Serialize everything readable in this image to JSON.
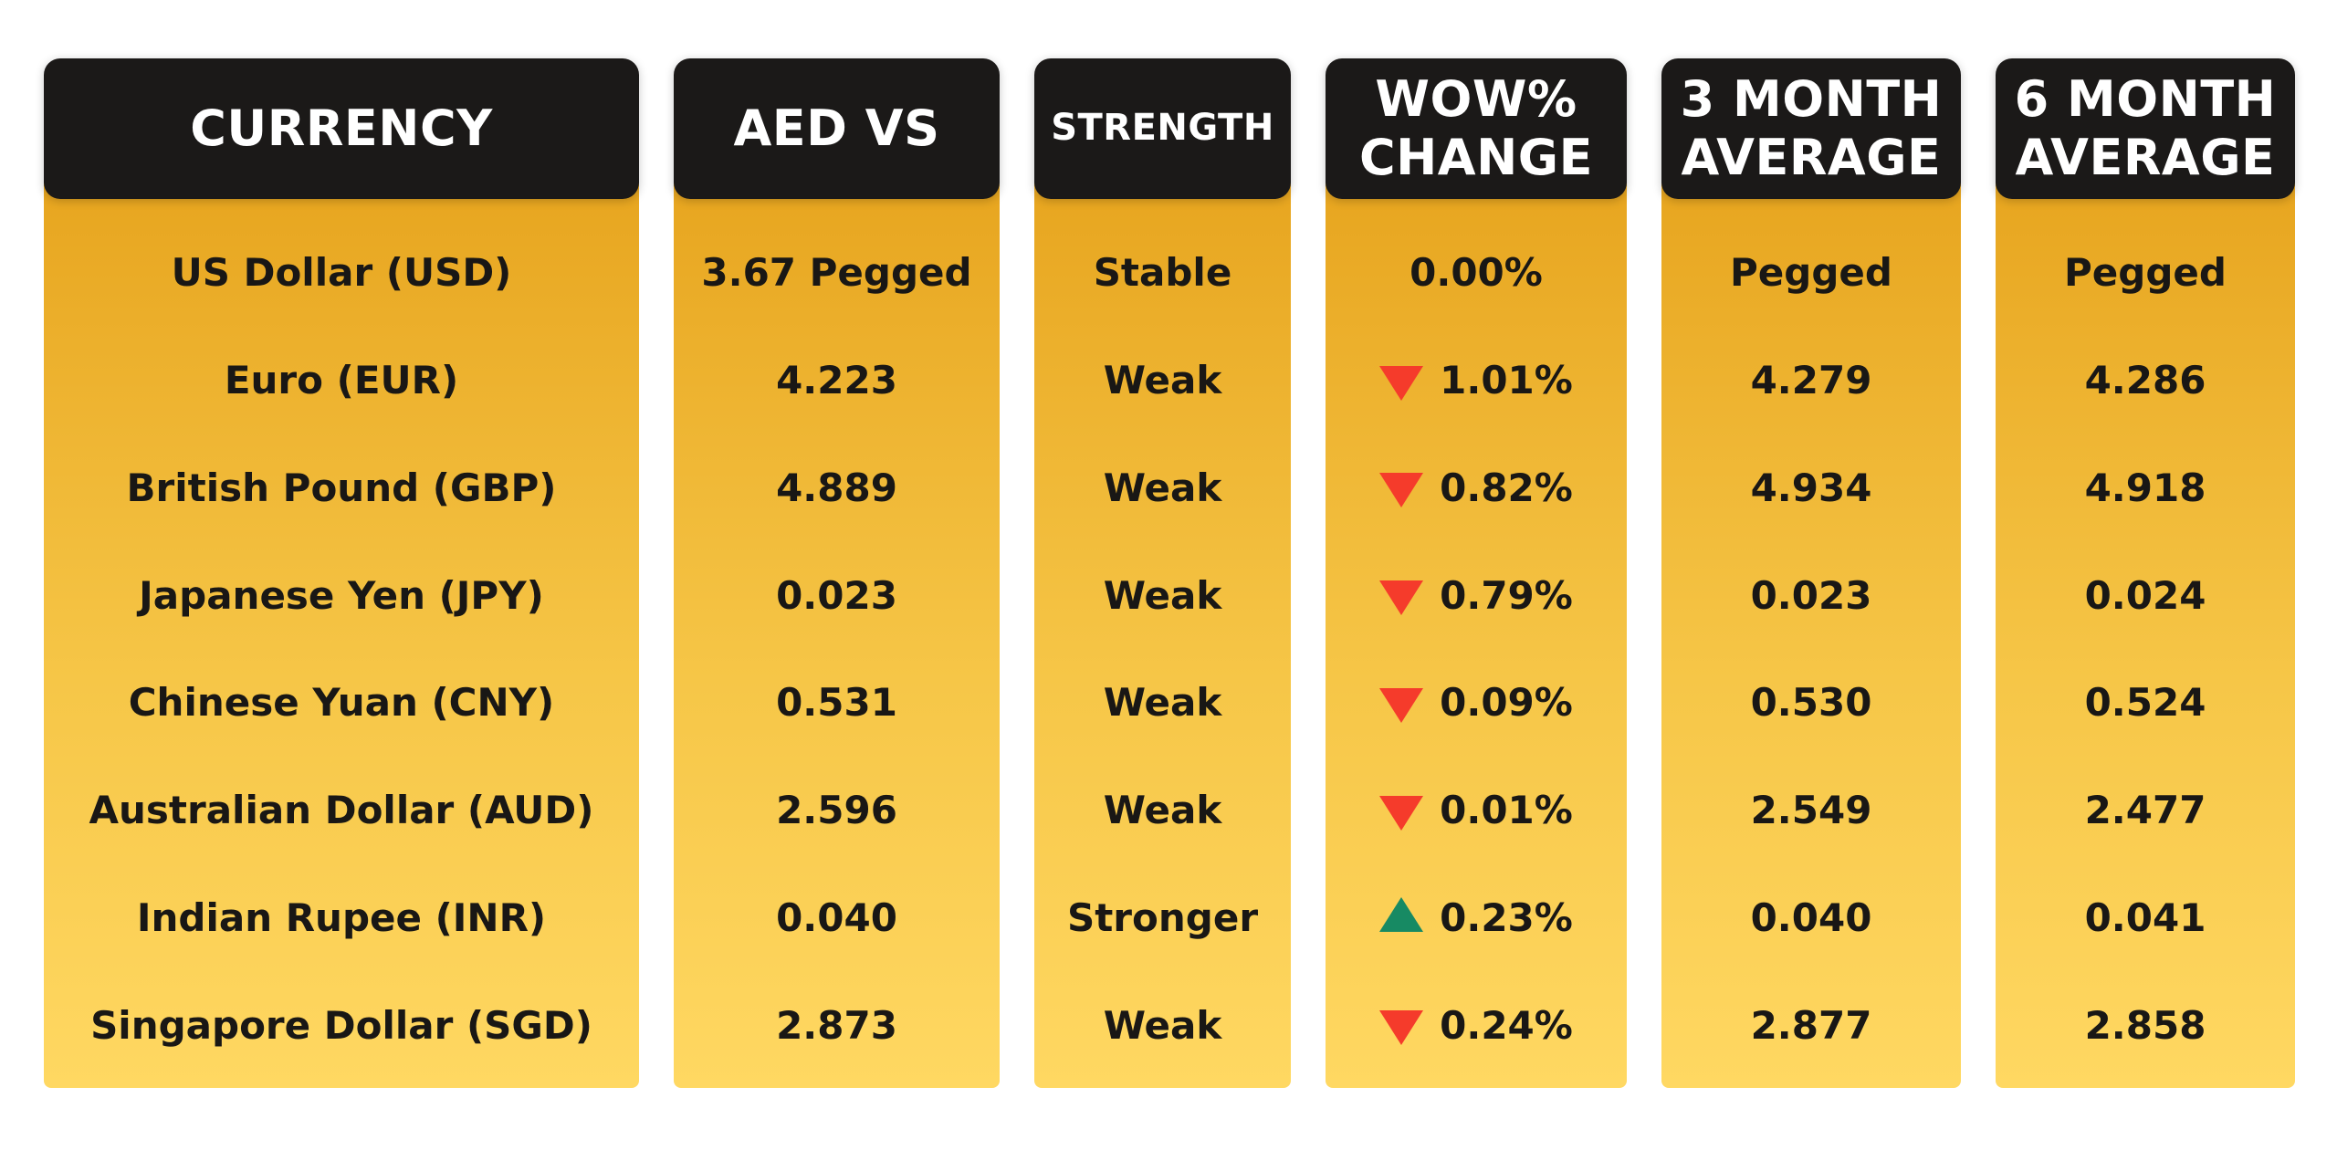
{
  "chart_data": {
    "type": "table",
    "columns": [
      "CURRENCY",
      "AED VS",
      "STRENGTH",
      "WOW% CHANGE",
      "3 MONTH AVERAGE",
      "6 MONTH AVERAGE"
    ],
    "rows": [
      [
        "US Dollar (USD)",
        "3.67 Pegged",
        "Stable",
        "0.00%",
        "Pegged",
        "Pegged"
      ],
      [
        "Euro (EUR)",
        "4.223",
        "Weak",
        "▼ 1.01%",
        "4.279",
        "4.286"
      ],
      [
        "British Pound (GBP)",
        "4.889",
        "Weak",
        "▼ 0.82%",
        "4.934",
        "4.918"
      ],
      [
        "Japanese Yen (JPY)",
        "0.023",
        "Weak",
        "▼ 0.79%",
        "0.023",
        "0.024"
      ],
      [
        "Chinese Yuan (CNY)",
        "0.531",
        "Weak",
        "▼ 0.09%",
        "0.530",
        "0.524"
      ],
      [
        "Australian Dollar (AUD)",
        "2.596",
        "Weak",
        "▼ 0.01%",
        "2.549",
        "2.477"
      ],
      [
        "Indian Rupee (INR)",
        "0.040",
        "Stronger",
        "▲ 0.23%",
        "0.040",
        "0.041"
      ],
      [
        "Singapore Dollar (SGD)",
        "2.873",
        "Weak",
        "▼ 0.24%",
        "2.877",
        "2.858"
      ]
    ]
  },
  "table": {
    "headers": [
      {
        "label": "CURRENCY"
      },
      {
        "label": "AED VS"
      },
      {
        "label": "STRENGTH"
      },
      {
        "label": "WOW% CHANGE"
      },
      {
        "label": "3 MONTH AVERAGE"
      },
      {
        "label": "6 MONTH AVERAGE"
      }
    ],
    "rows": [
      {
        "currency": "US Dollar (USD)",
        "aed": "3.67 Pegged",
        "strength": "Stable",
        "wow": {
          "dir": "none",
          "value": "0.00%"
        },
        "m3": "Pegged",
        "m6": "Pegged"
      },
      {
        "currency": "Euro (EUR)",
        "aed": "4.223",
        "strength": "Weak",
        "wow": {
          "dir": "down",
          "value": "1.01%"
        },
        "m3": "4.279",
        "m6": "4.286"
      },
      {
        "currency": "British Pound (GBP)",
        "aed": "4.889",
        "strength": "Weak",
        "wow": {
          "dir": "down",
          "value": "0.82%"
        },
        "m3": "4.934",
        "m6": "4.918"
      },
      {
        "currency": "Japanese Yen (JPY)",
        "aed": "0.023",
        "strength": "Weak",
        "wow": {
          "dir": "down",
          "value": "0.79%"
        },
        "m3": "0.023",
        "m6": "0.024"
      },
      {
        "currency": "Chinese Yuan (CNY)",
        "aed": "0.531",
        "strength": "Weak",
        "wow": {
          "dir": "down",
          "value": "0.09%"
        },
        "m3": "0.530",
        "m6": "0.524"
      },
      {
        "currency": "Australian Dollar (AUD)",
        "aed": "2.596",
        "strength": "Weak",
        "wow": {
          "dir": "down",
          "value": "0.01%"
        },
        "m3": "2.549",
        "m6": "2.477"
      },
      {
        "currency": "Indian Rupee (INR)",
        "aed": "0.040",
        "strength": "Stronger",
        "wow": {
          "dir": "up",
          "value": "0.23%"
        },
        "m3": "0.040",
        "m6": "0.041"
      },
      {
        "currency": "Singapore Dollar (SGD)",
        "aed": "2.873",
        "strength": "Weak",
        "wow": {
          "dir": "down",
          "value": "0.24%"
        },
        "m3": "2.877",
        "m6": "2.858"
      }
    ]
  },
  "colors": {
    "header_bg": "#1b1918",
    "body_gold_top": "#e7a51f",
    "body_gold_mid": "#f6c647",
    "body_gold_bottom": "#ffd862",
    "text_dark": "#191715",
    "header_text": "#ffffff",
    "down_red": "#f53b2b",
    "up_green": "#178a63"
  }
}
